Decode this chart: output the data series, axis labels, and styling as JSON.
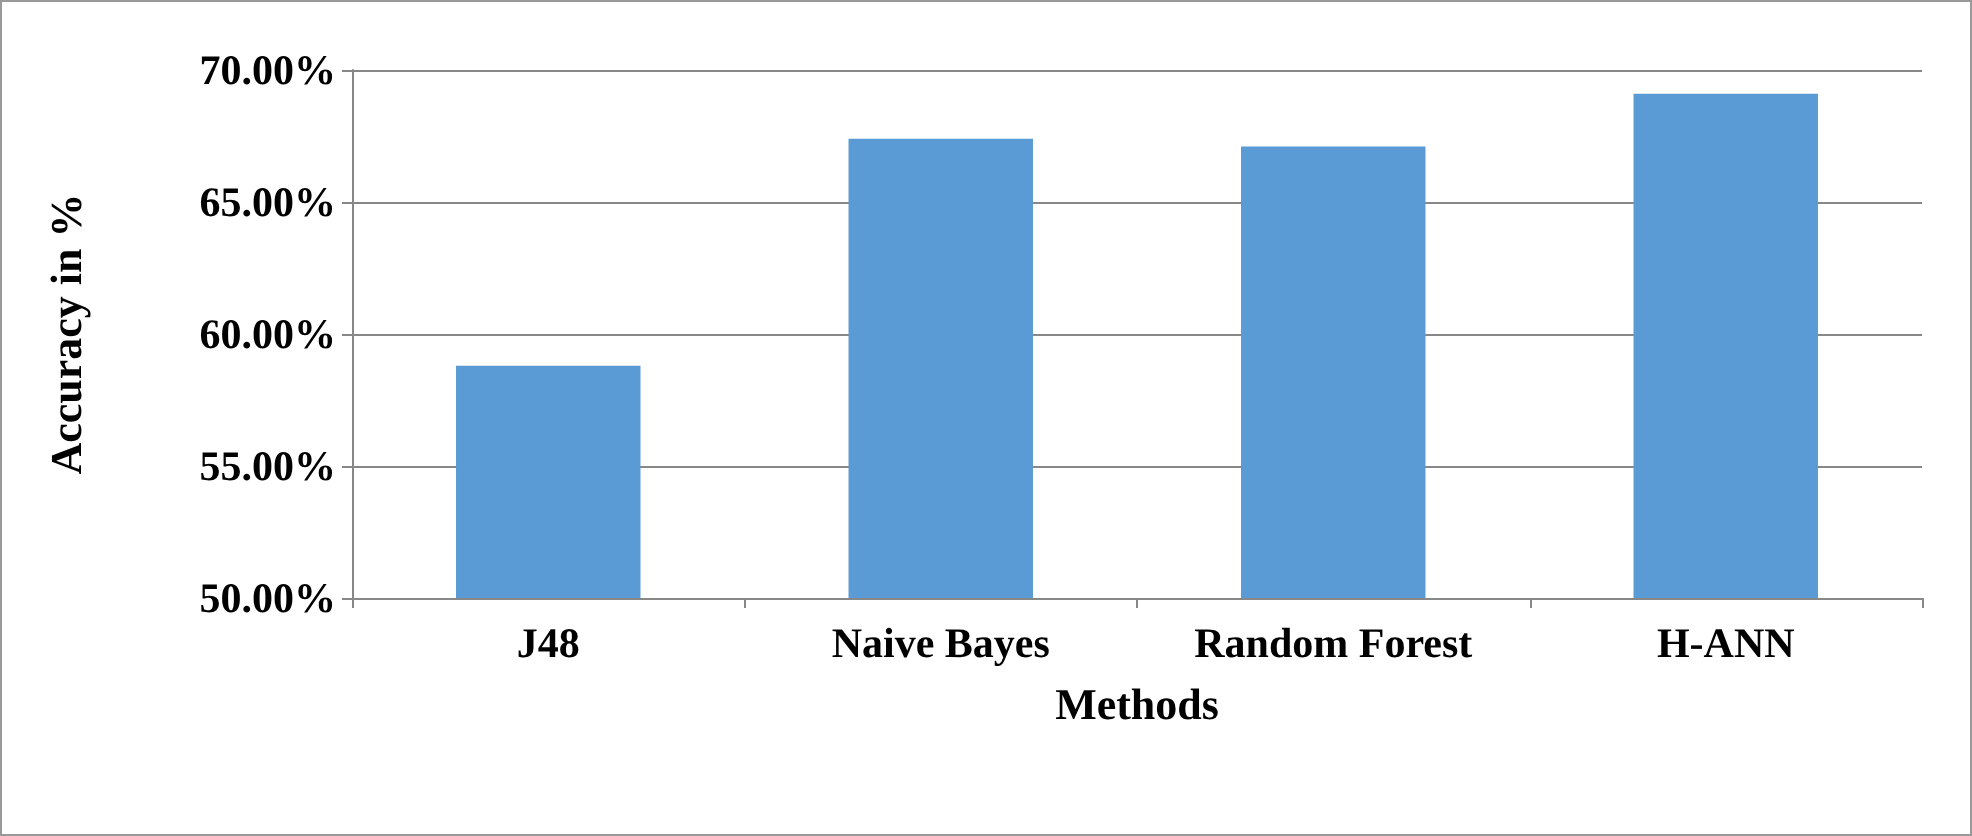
{
  "chart_data": {
    "type": "bar",
    "xlabel": "Methods",
    "ylabel": "Accuracy in %",
    "categories": [
      "J48",
      "Naive Bayes",
      "Random Forest",
      "H-ANN"
    ],
    "values": [
      58.8,
      67.4,
      67.1,
      69.1
    ],
    "color": "#5b9bd5",
    "ylim": [
      50,
      70
    ],
    "yticks": [
      {
        "value": 50,
        "label": "50.00%"
      },
      {
        "value": 55,
        "label": "55.00%"
      },
      {
        "value": 60,
        "label": "60.00%"
      },
      {
        "value": 65,
        "label": "65.00%"
      },
      {
        "value": 70,
        "label": "70.00%"
      }
    ],
    "grid": "y"
  }
}
